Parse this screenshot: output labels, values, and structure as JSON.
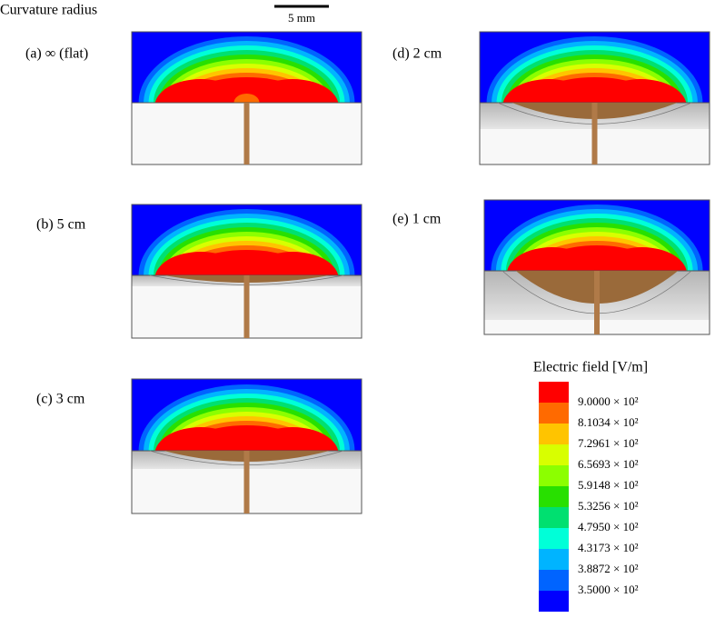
{
  "title": "Curvature radius",
  "scale_bar": "5 mm",
  "panels": [
    {
      "label": "(a) ∞ (flat)"
    },
    {
      "label": "(b) 5 cm"
    },
    {
      "label": "(c) 3 cm"
    },
    {
      "label": "(d) 2 cm"
    },
    {
      "label": "(e) 1 cm"
    }
  ],
  "legend": {
    "title": "Electric field [V/m]",
    "colors": [
      "#ff0000",
      "#ff6a00",
      "#ffc400",
      "#d8ff00",
      "#8cff00",
      "#28e000",
      "#00e070",
      "#00ffd8",
      "#00b4ff",
      "#0064ff",
      "#0000ff"
    ],
    "labels": [
      "9.0000 × 10²",
      "8.1034 × 10²",
      "7.2961 × 10²",
      "6.5693 × 10²",
      "5.9148 × 10²",
      "5.3256 × 10²",
      "4.7950 × 10²",
      "4.3173 × 10²",
      "3.8872 × 10²",
      "3.5000 × 10²"
    ]
  }
}
